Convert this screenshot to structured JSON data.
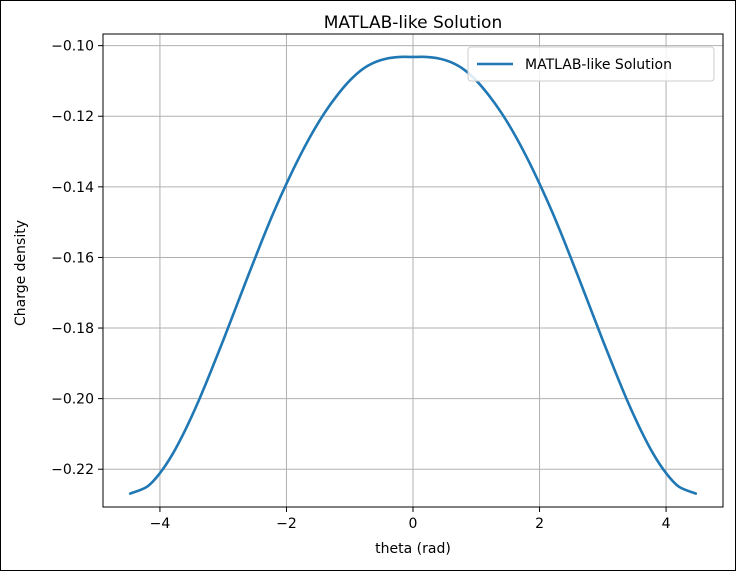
{
  "chart_data": {
    "type": "line",
    "title": "MATLAB-like Solution",
    "xlabel": "theta (rad)",
    "ylabel": "Charge density",
    "xlim": [
      -4.9,
      4.9
    ],
    "ylim": [
      -0.2307,
      -0.0967
    ],
    "xticks": [
      -4,
      -2,
      0,
      2,
      4
    ],
    "xtick_labels": [
      "−4",
      "−2",
      "0",
      "2",
      "4"
    ],
    "yticks": [
      -0.1,
      -0.12,
      -0.14,
      -0.16,
      -0.18,
      -0.2,
      -0.22
    ],
    "ytick_labels": [
      "−0.10",
      "−0.12",
      "−0.14",
      "−0.16",
      "−0.18",
      "−0.20",
      "−0.22"
    ],
    "grid": true,
    "legend_position": "top-right",
    "series": [
      {
        "name": "MATLAB-like Solution",
        "color": "#1f77b4",
        "x": [
          -4.47,
          -4.2,
          -4.0,
          -3.8,
          -3.6,
          -3.4,
          -3.2,
          -3.0,
          -2.8,
          -2.6,
          -2.4,
          -2.2,
          -2.0,
          -1.8,
          -1.6,
          -1.4,
          -1.2,
          -1.0,
          -0.8,
          -0.6,
          -0.4,
          -0.2,
          0.0,
          0.2,
          0.4,
          0.6,
          0.8,
          1.0,
          1.2,
          1.4,
          1.6,
          1.8,
          2.0,
          2.2,
          2.4,
          2.6,
          2.8,
          3.0,
          3.2,
          3.4,
          3.6,
          3.8,
          4.0,
          4.2,
          4.47
        ],
        "y": [
          -0.2269,
          -0.2249,
          -0.2211,
          -0.2157,
          -0.2089,
          -0.2011,
          -0.1925,
          -0.1835,
          -0.1742,
          -0.1649,
          -0.1558,
          -0.1471,
          -0.1391,
          -0.1317,
          -0.125,
          -0.1191,
          -0.1141,
          -0.1099,
          -0.1067,
          -0.1047,
          -0.1036,
          -0.1032,
          -0.1032,
          -0.1032,
          -0.1036,
          -0.1047,
          -0.1067,
          -0.1099,
          -0.1141,
          -0.1191,
          -0.125,
          -0.1317,
          -0.1391,
          -0.1471,
          -0.1558,
          -0.1649,
          -0.1742,
          -0.1835,
          -0.1925,
          -0.2011,
          -0.2089,
          -0.2157,
          -0.2211,
          -0.2249,
          -0.2269
        ]
      }
    ]
  }
}
